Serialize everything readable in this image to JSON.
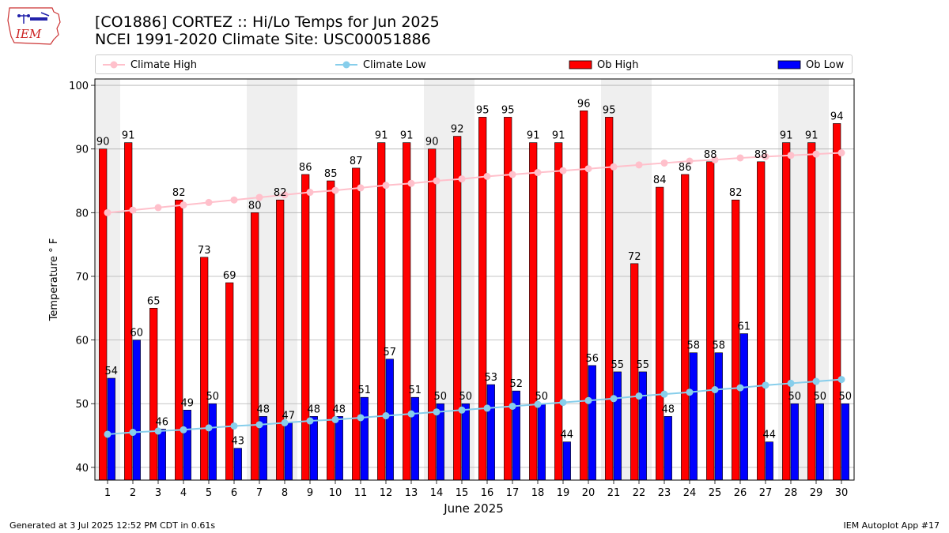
{
  "header": {
    "title_line1": "[CO1886] CORTEZ :: Hi/Lo Temps for Jun 2025",
    "title_line2": "NCEI 1991-2020 Climate Site: USC00051886",
    "logo_text": "IEM"
  },
  "footer": {
    "generated": "Generated at 3 Jul 2025 12:52 PM CDT in 0.61s",
    "app": "IEM Autoplot App #17"
  },
  "colors": {
    "ob_high": "#ff0000",
    "ob_low": "#0000ff",
    "climate_high": "#ffc0cb",
    "climate_low": "#87ceeb",
    "weekend_shade": "#efefef",
    "grid": "#b0b0b0"
  },
  "chart_data": {
    "type": "bar",
    "xlabel": "June 2025",
    "ylabel": "Temperature ° F",
    "ylim": [
      38,
      101
    ],
    "yticks": [
      40,
      50,
      60,
      70,
      80,
      90,
      100
    ],
    "grid": "horizontal",
    "legend_placement": "top",
    "categories": [
      "1",
      "2",
      "3",
      "4",
      "5",
      "6",
      "7",
      "8",
      "9",
      "10",
      "11",
      "12",
      "13",
      "14",
      "15",
      "16",
      "17",
      "18",
      "19",
      "20",
      "21",
      "22",
      "23",
      "24",
      "25",
      "26",
      "27",
      "28",
      "29",
      "30"
    ],
    "shaded_days": [
      1,
      7,
      8,
      14,
      15,
      21,
      22,
      28,
      29
    ],
    "series": [
      {
        "name": "Climate High",
        "kind": "line",
        "values": [
          80.0,
          80.4,
          80.8,
          81.2,
          81.6,
          82.0,
          82.4,
          82.8,
          83.2,
          83.5,
          83.9,
          84.3,
          84.6,
          85.0,
          85.3,
          85.7,
          86.0,
          86.3,
          86.6,
          86.9,
          87.2,
          87.5,
          87.8,
          88.1,
          88.3,
          88.6,
          88.8,
          89.0,
          89.2,
          89.4
        ]
      },
      {
        "name": "Climate Low",
        "kind": "line",
        "values": [
          45.2,
          45.5,
          45.7,
          45.9,
          46.2,
          46.5,
          46.7,
          47.0,
          47.3,
          47.5,
          47.8,
          48.1,
          48.4,
          48.7,
          49.0,
          49.3,
          49.6,
          49.9,
          50.2,
          50.5,
          50.8,
          51.2,
          51.5,
          51.8,
          52.2,
          52.5,
          52.9,
          53.2,
          53.5,
          53.8
        ]
      },
      {
        "name": "Ob High",
        "kind": "bar",
        "values": [
          90,
          91,
          65,
          82,
          73,
          69,
          80,
          82,
          86,
          85,
          87,
          91,
          91,
          90,
          92,
          95,
          95,
          91,
          91,
          96,
          95,
          72,
          84,
          86,
          88,
          82,
          88,
          91,
          91,
          94
        ]
      },
      {
        "name": "Ob Low",
        "kind": "bar",
        "values": [
          54,
          60,
          46,
          49,
          50,
          43,
          48,
          47,
          48,
          48,
          51,
          57,
          51,
          50,
          50,
          53,
          52,
          50,
          44,
          56,
          55,
          55,
          48,
          58,
          58,
          61,
          44,
          50,
          50,
          50
        ]
      }
    ]
  }
}
